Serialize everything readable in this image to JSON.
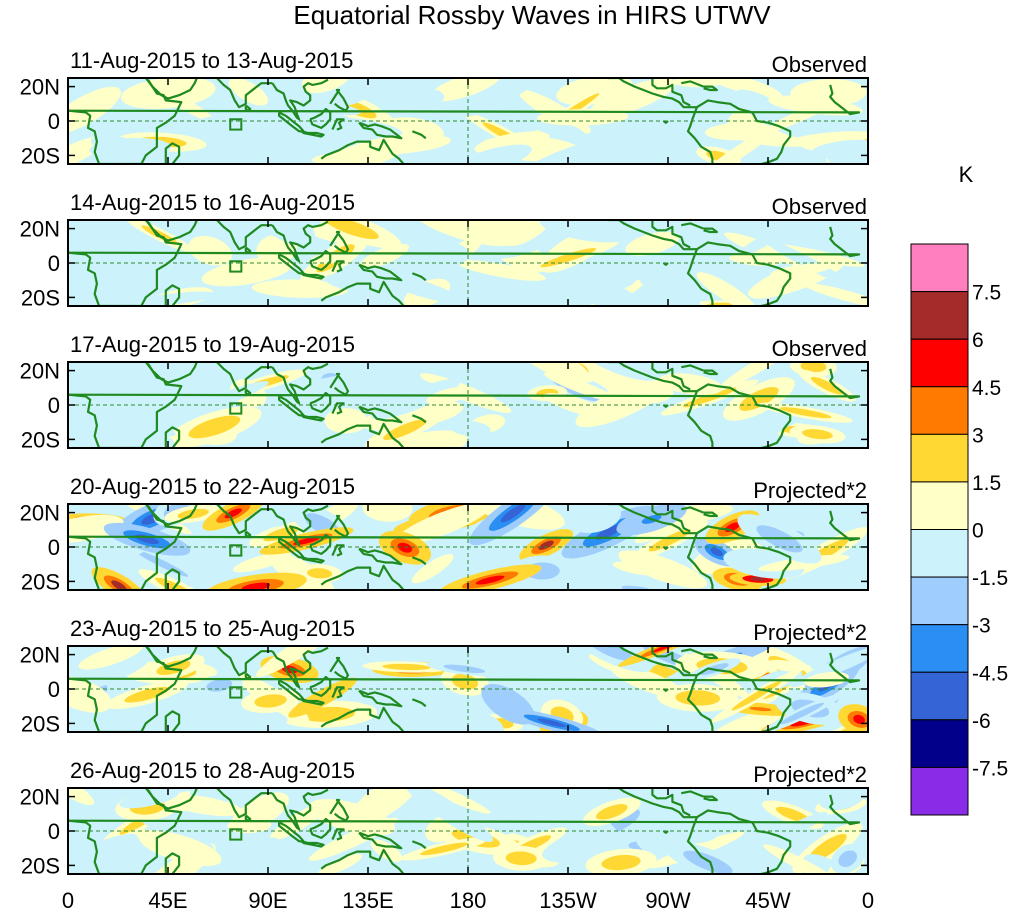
{
  "chart_data": {
    "type": "heatmap",
    "title": "Equatorial Rossby Waves in HIRS UTWV",
    "units": "K",
    "xlabel": "",
    "ylabel": "",
    "x_ticks": [
      "0",
      "45E",
      "90E",
      "135E",
      "180",
      "135W",
      "90W",
      "45W",
      "0"
    ],
    "x_tick_values": [
      0,
      45,
      90,
      135,
      180,
      225,
      270,
      315,
      360
    ],
    "y_ticks": [
      "20N",
      "0",
      "20S"
    ],
    "y_tick_values": [
      20,
      0,
      -20
    ],
    "xlim": [
      0,
      360
    ],
    "ylim": [
      -25,
      25
    ],
    "colorbar": {
      "levels": [
        "7.5",
        "6",
        "4.5",
        "3",
        "1.5",
        "0",
        "-1.5",
        "-3",
        "-4.5",
        "-6",
        "-7.5"
      ],
      "level_values": [
        7.5,
        6,
        4.5,
        3,
        1.5,
        0,
        -1.5,
        -3,
        -4.5,
        -6,
        -7.5
      ],
      "colors": [
        "#ff7fbf",
        "#a52a2a",
        "#ff0000",
        "#ff7a00",
        "#ffd834",
        "#ffffc8",
        "#ccf2fc",
        "#a0cefc",
        "#2a8ef2",
        "#3564d7",
        "#02008b",
        "#8a2ce7"
      ]
    },
    "panels": [
      {
        "date_range": "11-Aug-2015 to 13-Aug-2015",
        "label": "Observed",
        "scale": 0.45,
        "seed": 1
      },
      {
        "date_range": "14-Aug-2015 to 16-Aug-2015",
        "label": "Observed",
        "scale": 0.5,
        "seed": 2
      },
      {
        "date_range": "17-Aug-2015 to 19-Aug-2015",
        "label": "Observed",
        "scale": 0.55,
        "seed": 3
      },
      {
        "date_range": "20-Aug-2015 to 22-Aug-2015",
        "label": "Projected*2",
        "scale": 1.15,
        "seed": 4
      },
      {
        "date_range": "23-Aug-2015 to 25-Aug-2015",
        "label": "Projected*2",
        "scale": 1.0,
        "seed": 5
      },
      {
        "date_range": "26-Aug-2015 to 28-Aug-2015",
        "label": "Projected*2",
        "scale": 0.7,
        "seed": 6
      }
    ]
  }
}
